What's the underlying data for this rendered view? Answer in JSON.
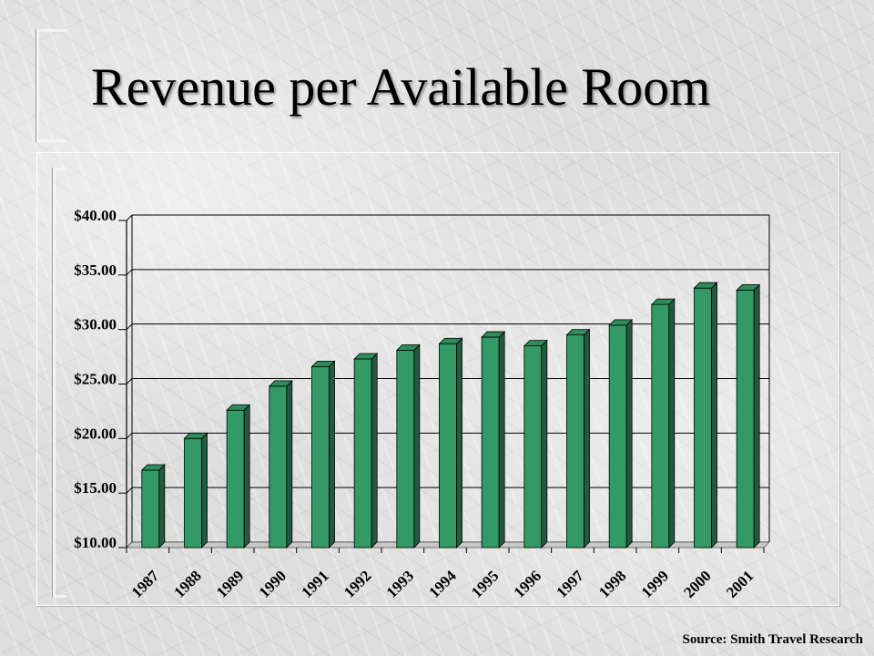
{
  "slide": {
    "title": "Revenue per Available Room",
    "source": "Source: Smith Travel Research"
  },
  "colors": {
    "bar_front": "#339966",
    "bar_side": "#1f5c3d",
    "bar_top": "#2f8a5c",
    "grid": "#000000"
  },
  "chart_data": {
    "type": "bar",
    "title": "",
    "xlabel": "",
    "ylabel": "",
    "categories": [
      "1987",
      "1988",
      "1989",
      "1990",
      "1991",
      "1992",
      "1993",
      "1994",
      "1995",
      "1996",
      "1997",
      "1998",
      "1999",
      "2000",
      "2001"
    ],
    "values": [
      17.1,
      20.0,
      22.6,
      24.8,
      26.6,
      27.3,
      28.1,
      28.7,
      29.3,
      28.5,
      29.5,
      30.4,
      32.3,
      33.8,
      33.6
    ],
    "ylim": [
      10,
      40
    ],
    "yticks": [
      "$10.00",
      "$15.00",
      "$20.00",
      "$25.00",
      "$30.00",
      "$35.00",
      "$40.00"
    ],
    "ytick_values": [
      10,
      15,
      20,
      25,
      30,
      35,
      40
    ],
    "grid": true,
    "legend": "none"
  }
}
